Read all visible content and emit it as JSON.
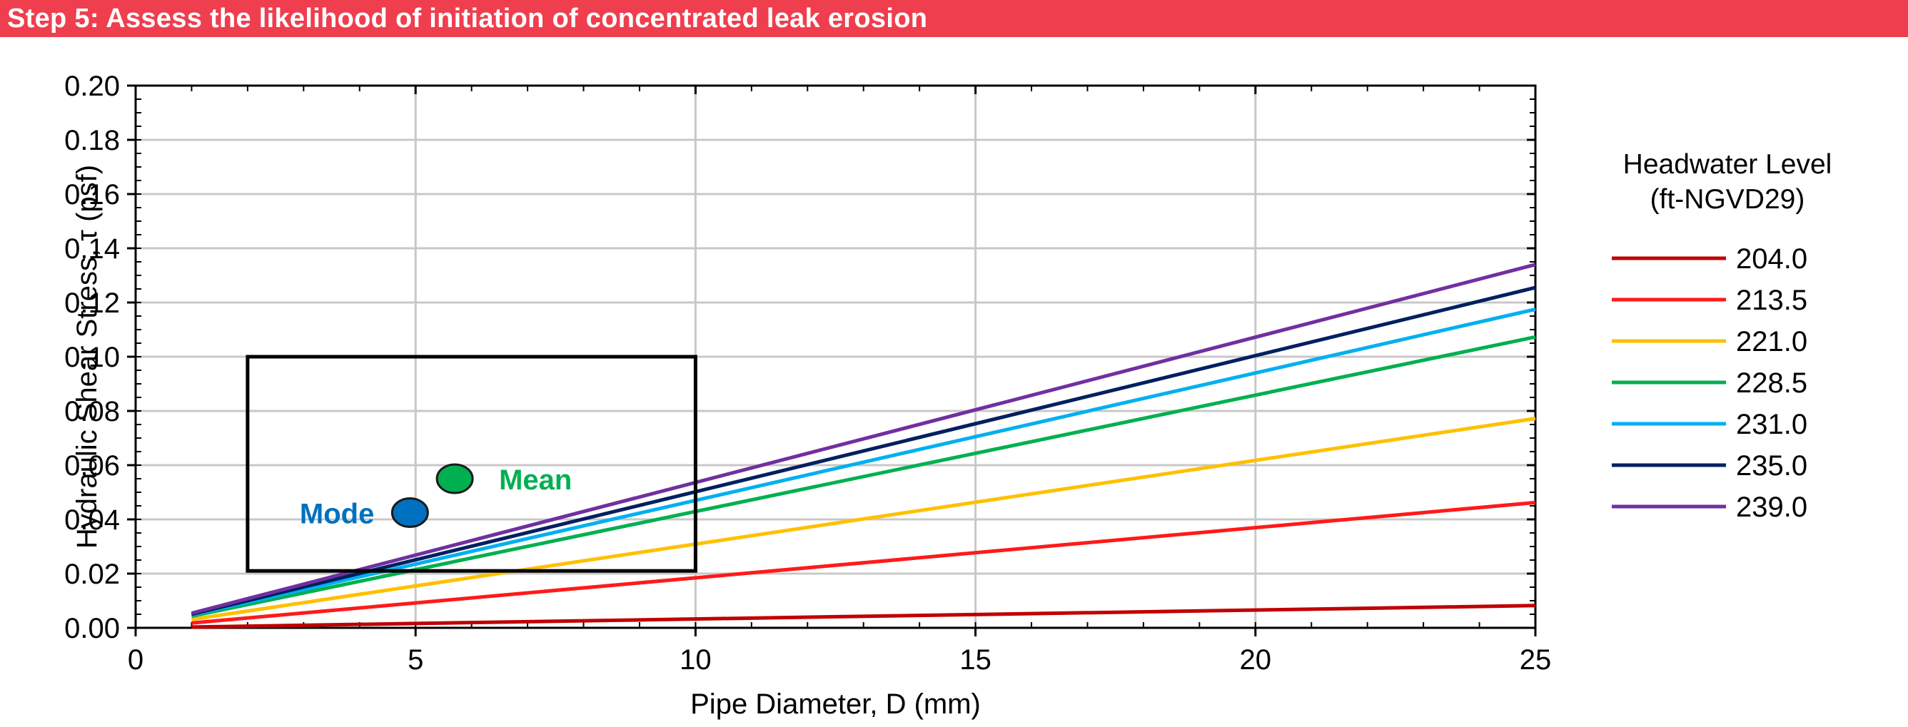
{
  "header": {
    "title": "Step 5: Assess the likelihood of initiation of concentrated leak erosion",
    "background": "#ef3e4e"
  },
  "chart_data": {
    "type": "line",
    "xlabel": "Pipe Diameter,  D (mm)",
    "ylabel": "Hydraulic Shear Stress, τ (psf)",
    "xlim": [
      0,
      25
    ],
    "ylim": [
      0,
      0.2
    ],
    "xticks": [
      "0",
      "5",
      "10",
      "15",
      "20",
      "25"
    ],
    "yticks": [
      "0.00",
      "0.02",
      "0.04",
      "0.06",
      "0.08",
      "0.10",
      "0.12",
      "0.14",
      "0.16",
      "0.18",
      "0.20"
    ],
    "grid": true,
    "legend": {
      "title_line1": "Headwater  Level",
      "title_line2": "(ft-NGVD29)",
      "position": "right"
    },
    "series": [
      {
        "name": "204.0",
        "color": "#c00000",
        "x": [
          1,
          25
        ],
        "y": [
          0.0003,
          0.0082
        ]
      },
      {
        "name": "213.5",
        "color": "#ff1a1a",
        "x": [
          1,
          25
        ],
        "y": [
          0.0018,
          0.0462
        ]
      },
      {
        "name": "221.0",
        "color": "#ffc000",
        "x": [
          1,
          25
        ],
        "y": [
          0.0031,
          0.0772
        ]
      },
      {
        "name": "228.5",
        "color": "#00b050",
        "x": [
          1,
          25
        ],
        "y": [
          0.0043,
          0.1073
        ]
      },
      {
        "name": "231.0",
        "color": "#00b0f0",
        "x": [
          1,
          25
        ],
        "y": [
          0.0047,
          0.1175
        ]
      },
      {
        "name": "235.0",
        "color": "#002060",
        "x": [
          1,
          25
        ],
        "y": [
          0.005,
          0.1255
        ]
      },
      {
        "name": "239.0",
        "color": "#7030a0",
        "x": [
          1,
          25
        ],
        "y": [
          0.0054,
          0.134
        ]
      }
    ],
    "box": {
      "x": [
        2,
        10
      ],
      "y": [
        0.021,
        0.1
      ]
    },
    "points": [
      {
        "label": "Mean",
        "x": 5.7,
        "y": 0.055,
        "color": "#00b050"
      },
      {
        "label": "Mode",
        "x": 4.9,
        "y": 0.0425,
        "color": "#0070c0"
      }
    ]
  }
}
